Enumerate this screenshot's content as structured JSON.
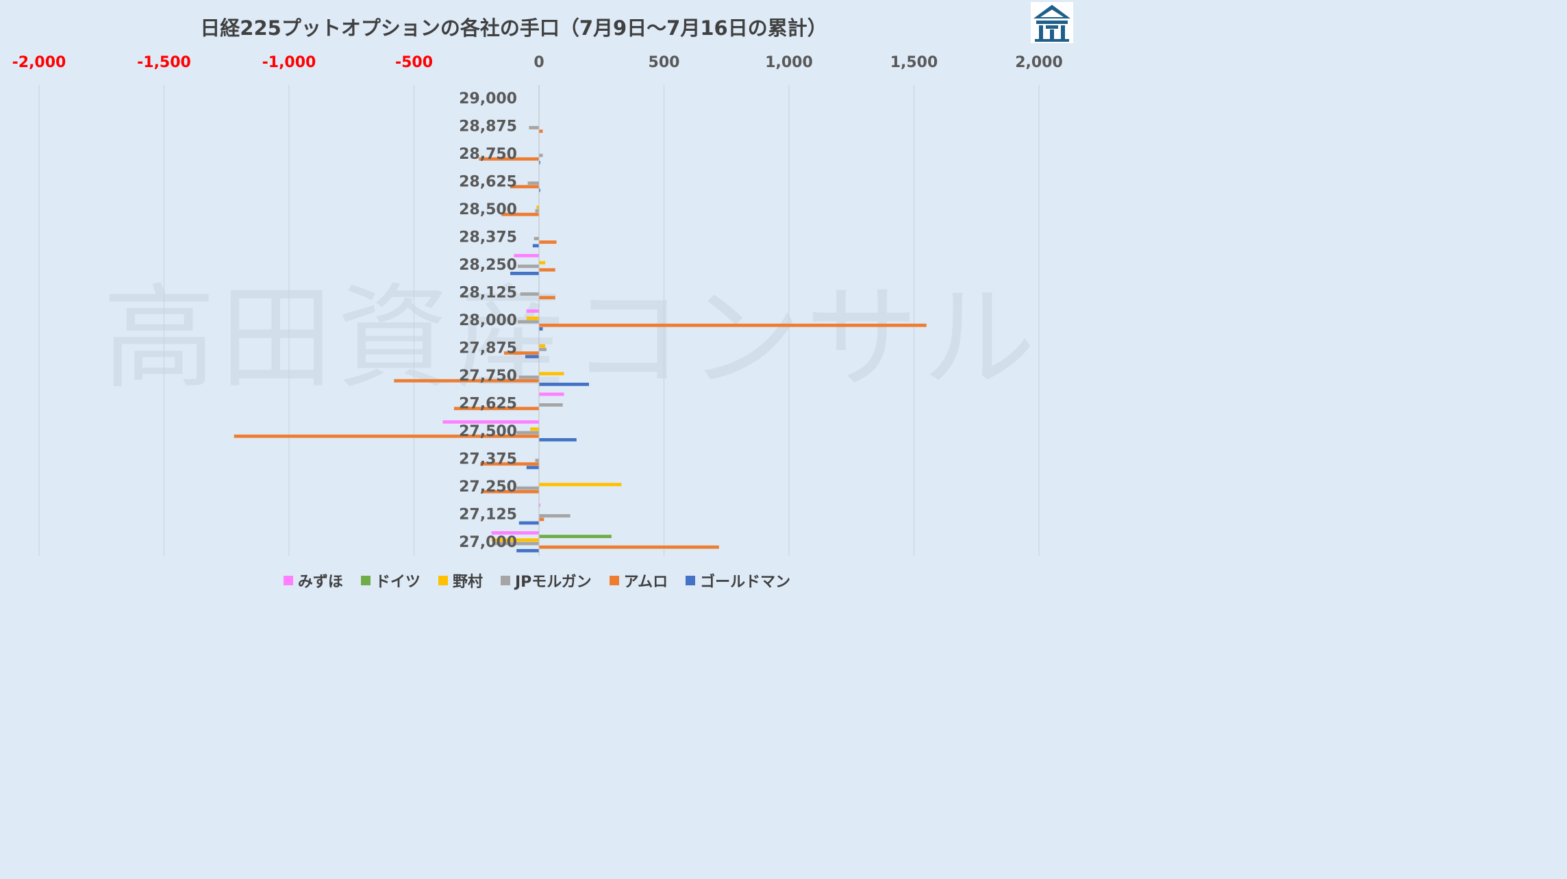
{
  "chart_data": {
    "type": "bar",
    "orientation": "horizontal",
    "title": "日経225プットオプションの各社の手口（7月9日～7月16日の累計）",
    "watermark": "高田資産コンサル",
    "xlim": [
      -2000,
      2000
    ],
    "x_ticks": [
      "-2,000",
      "-1,500",
      "-1,000",
      "-500",
      "0",
      "500",
      "1,000",
      "1,500",
      "2,000"
    ],
    "x_tick_values": [
      -2000,
      -1500,
      -1000,
      -500,
      0,
      500,
      1000,
      1500,
      2000
    ],
    "negative_tick_color": "#ff0000",
    "grid": true,
    "legend_position": "bottom",
    "categories": [
      "29,000",
      "28,875",
      "28,750",
      "28,625",
      "28,500",
      "28,375",
      "28,250",
      "28,125",
      "28,000",
      "27,875",
      "27,750",
      "27,625",
      "27,500",
      "27,375",
      "27,250",
      "27,125",
      "27,000"
    ],
    "series": [
      {
        "name": "みずほ",
        "color": "#ff80ff",
        "values": [
          0,
          0,
          0,
          0,
          0,
          0,
          -100,
          0,
          -50,
          0,
          0,
          100,
          -385,
          0,
          0,
          5,
          -190
        ]
      },
      {
        "name": "ドイツ",
        "color": "#70ad47",
        "values": [
          0,
          0,
          0,
          0,
          0,
          0,
          0,
          0,
          0,
          0,
          0,
          0,
          0,
          0,
          0,
          0,
          290
        ]
      },
      {
        "name": "野村",
        "color": "#ffc000",
        "values": [
          0,
          0,
          0,
          0,
          -10,
          0,
          25,
          0,
          -50,
          25,
          100,
          0,
          -35,
          0,
          330,
          0,
          -190
        ]
      },
      {
        "name": "JPモルガン",
        "color": "#a5a5a5",
        "values": [
          0,
          -40,
          15,
          -45,
          -15,
          -20,
          -85,
          -75,
          -85,
          30,
          -80,
          95,
          -90,
          -15,
          -90,
          125,
          -180
        ]
      },
      {
        "name": "アムロ",
        "color": "#ed7d31",
        "values": [
          0,
          15,
          -240,
          -115,
          -150,
          70,
          65,
          65,
          1550,
          -140,
          -580,
          -340,
          -1220,
          -235,
          -230,
          20,
          720
        ]
      },
      {
        "name": "ゴールドマン",
        "color": "#4472c4",
        "values": [
          0,
          0,
          5,
          5,
          0,
          -25,
          -115,
          0,
          15,
          -55,
          200,
          0,
          150,
          -50,
          0,
          -80,
          -90
        ]
      }
    ]
  }
}
